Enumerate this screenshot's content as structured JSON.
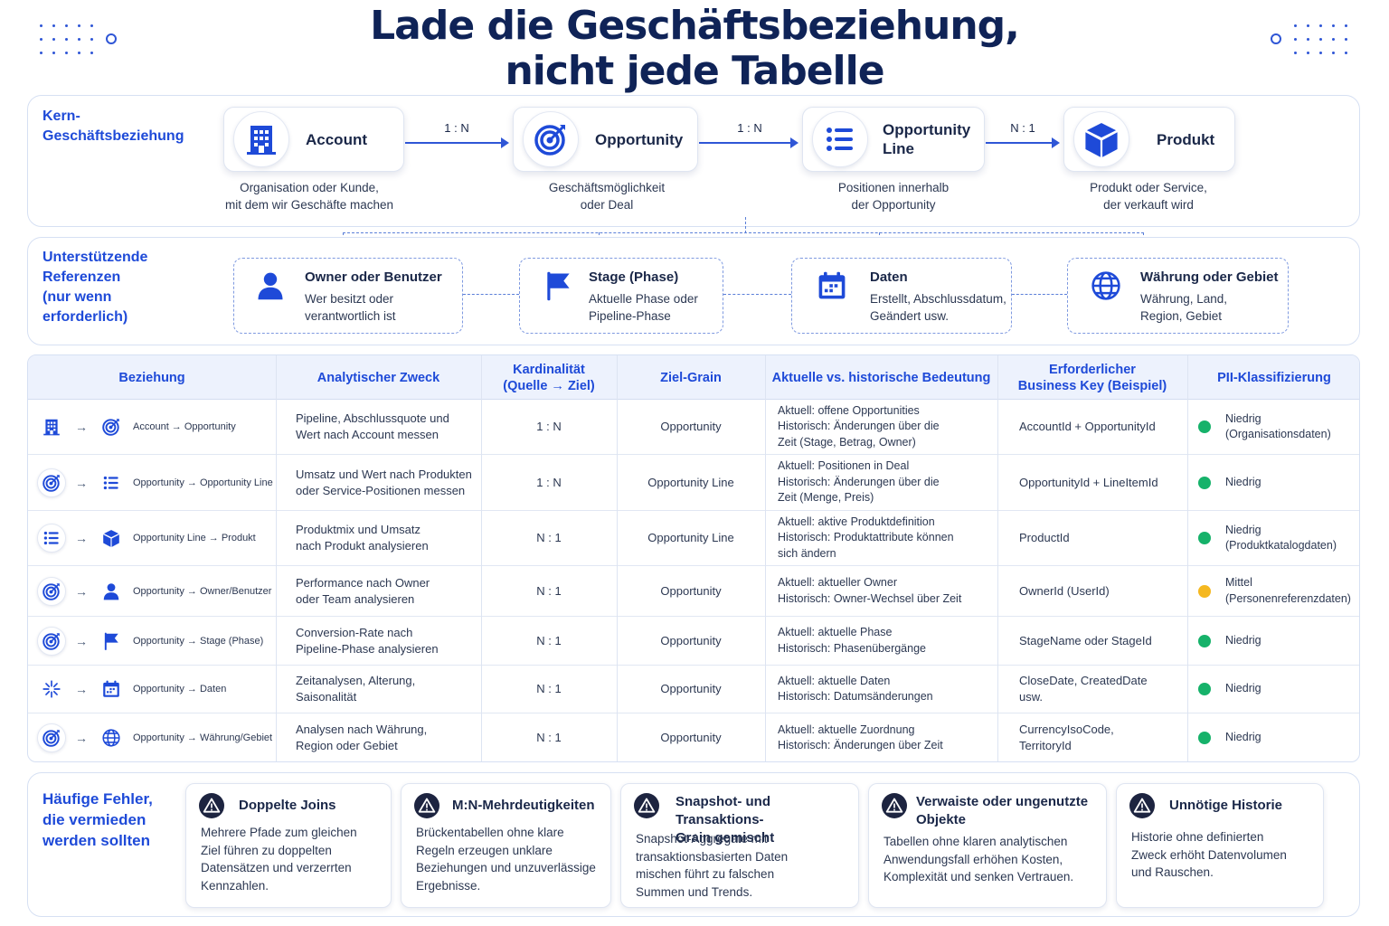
{
  "title": {
    "line1": "Lade die Geschäftsbeziehung,",
    "line2": "nicht jede Tabelle"
  },
  "colors": {
    "primary": "#1e4ad8",
    "navy": "#0f2357",
    "low": "#16b26a",
    "medium": "#f5b820"
  },
  "core": {
    "label": "Kern-\nGeschäftsbeziehung",
    "entities": [
      {
        "name": "Account",
        "icon": "building-icon",
        "desc": "Organisation oder Kunde,\nmit dem wir Geschäfte machen"
      },
      {
        "name": "Opportunity",
        "icon": "target-icon",
        "desc": "Geschäftsmöglichkeit\noder Deal"
      },
      {
        "name": "Opportunity\nLine",
        "icon": "list-icon",
        "desc": "Positionen innerhalb\nder Opportunity"
      },
      {
        "name": "Produkt",
        "icon": "cube-icon",
        "desc": "Produkt oder Service,\nder verkauft wird"
      }
    ],
    "cardinalities": [
      "1 : N",
      "1 : N",
      "N : 1"
    ]
  },
  "support": {
    "label": "Unterstützende\nReferenzen\n(nur wenn\nerforderlich)",
    "refs": [
      {
        "title": "Owner oder Benutzer",
        "desc": "Wer besitzt oder\nverantwortlich ist",
        "icon": "user-icon"
      },
      {
        "title": "Stage (Phase)",
        "desc": "Aktuelle Phase oder\nPipeline-Phase",
        "icon": "flag-icon"
      },
      {
        "title": "Daten",
        "desc": "Erstellt, Abschlussdatum,\nGeändert usw.",
        "icon": "calendar-icon"
      },
      {
        "title": "Währung oder Gebiet",
        "desc": "Währung, Land,\nRegion, Gebiet",
        "icon": "globe-icon"
      }
    ]
  },
  "table": {
    "headers": [
      "Beziehung",
      "Analytischer Zweck",
      "Kardinalität\n(Quelle → Ziel)",
      "Ziel-Grain",
      "Aktuelle vs. historische Bedeutung",
      "Erforderlicher\nBusiness Key (Beispiel)",
      "PII-Klassifizierung"
    ],
    "rows": [
      {
        "from_icon": "building-icon",
        "to_icon": "target-icon",
        "relation": "Account → Opportunity",
        "purpose": "Pipeline, Abschlussquote und\nWert nach Account messen",
        "cardinality": "1 : N",
        "grain": "Opportunity",
        "meaning": "Aktuell: offene Opportunities\nHistorisch: Änderungen über die\nZeit (Stage, Betrag, Owner)",
        "key": "AccountId + OpportunityId",
        "pii": "Niedrig\n(Organisationsdaten)",
        "pii_color": "#16b26a"
      },
      {
        "from_icon": "target-icon",
        "to_icon": "list-icon",
        "relation": "Opportunity → Opportunity Line",
        "purpose": "Umsatz und Wert nach Produkten\noder Service-Positionen messen",
        "cardinality": "1 : N",
        "grain": "Opportunity Line",
        "meaning": "Aktuell: Positionen in Deal\nHistorisch: Änderungen über die\nZeit (Menge, Preis)",
        "key": "OpportunityId + LineItemId",
        "pii": "Niedrig",
        "pii_color": "#16b26a"
      },
      {
        "from_icon": "list-icon",
        "to_icon": "cube-icon",
        "relation": "Opportunity Line → Produkt",
        "purpose": "Produktmix und Umsatz\nnach Produkt analysieren",
        "cardinality": "N : 1",
        "grain": "Opportunity Line",
        "meaning": "Aktuell: aktive Produktdefinition\nHistorisch: Produktattribute können\nsich ändern",
        "key": "ProductId",
        "pii": "Niedrig\n(Produktkatalogdaten)",
        "pii_color": "#16b26a"
      },
      {
        "from_icon": "target-icon",
        "to_icon": "user-icon",
        "relation": "Opportunity → Owner/Benutzer",
        "purpose": "Performance nach Owner\noder Team analysieren",
        "cardinality": "N : 1",
        "grain": "Opportunity",
        "meaning": "Aktuell: aktueller Owner\nHistorisch: Owner-Wechsel über Zeit",
        "key": "OwnerId (UserId)",
        "pii": "Mittel\n(Personenreferenzdaten)",
        "pii_color": "#f5b820"
      },
      {
        "from_icon": "target-icon",
        "to_icon": "flag-icon",
        "relation": "Opportunity → Stage (Phase)",
        "purpose": "Conversion-Rate nach\nPipeline-Phase analysieren",
        "cardinality": "N : 1",
        "grain": "Opportunity",
        "meaning": "Aktuell: aktuelle Phase\nHistorisch: Phasenübergänge",
        "key": "StageName oder StageId",
        "pii": "Niedrig",
        "pii_color": "#16b26a"
      },
      {
        "from_icon": "sparkle-icon",
        "to_icon": "calendar-icon",
        "relation": "Opportunity → Daten",
        "purpose": "Zeitanalysen, Alterung,\nSaisonalität",
        "cardinality": "N : 1",
        "grain": "Opportunity",
        "meaning": "Aktuell: aktuelle Daten\nHistorisch: Datumsänderungen",
        "key": "CloseDate, CreatedDate\nusw.",
        "pii": "Niedrig",
        "pii_color": "#16b26a"
      },
      {
        "from_icon": "target-icon",
        "to_icon": "globe-icon",
        "relation": "Opportunity → Währung/Gebiet",
        "purpose": "Analysen nach Währung,\nRegion oder Gebiet",
        "cardinality": "N : 1",
        "grain": "Opportunity",
        "meaning": "Aktuell: aktuelle Zuordnung\nHistorisch: Änderungen über Zeit",
        "key": "CurrencyIsoCode,\nTerritoryId",
        "pii": "Niedrig",
        "pii_color": "#16b26a"
      }
    ]
  },
  "errors": {
    "label": "Häufige Fehler,\ndie vermieden\nwerden sollten",
    "items": [
      {
        "title": "Doppelte Joins",
        "desc": "Mehrere Pfade zum gleichen\nZiel führen zu doppelten\nDatensätzen und verzerrten\nKennzahlen."
      },
      {
        "title": "M:N-Mehrdeutigkeiten",
        "desc": "Brückentabellen ohne klare\nRegeln erzeugen unklare\nBeziehungen und unzuverlässige\nErgebnisse."
      },
      {
        "title": "Snapshot- und Transaktions-\nGrain gemischt",
        "desc": "Snapshot-Aggregate mit\ntransaktionsbasierten Daten\nmischen führt zu falschen\nSummen und Trends."
      },
      {
        "title": "Verwaiste oder ungenutzte\nObjekte",
        "desc": "Tabellen ohne klaren analytischen\nAnwendungsfall erhöhen Kosten,\nKomplexität und senken Vertrauen."
      },
      {
        "title": "Unnötige Historie",
        "desc": "Historie ohne definierten\nZweck erhöht Datenvolumen\nund Rauschen."
      }
    ]
  }
}
